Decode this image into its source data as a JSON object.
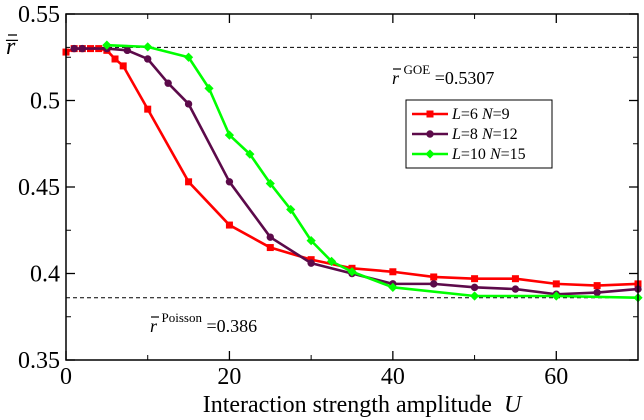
{
  "chart_data": {
    "type": "line",
    "title": "",
    "xlabel": "Interaction strength amplitude",
    "xlabel_var": "U",
    "ylabel": "r̅",
    "xlim": [
      0,
      70
    ],
    "ylim": [
      0.35,
      0.55
    ],
    "x_ticks": [
      0,
      20,
      40,
      60
    ],
    "x_tick_labels": [
      "0",
      "20",
      "40",
      "60"
    ],
    "y_ticks": [
      0.35,
      0.4,
      0.45,
      0.5,
      0.55
    ],
    "y_tick_labels": [
      "0.35",
      "0.4",
      "0.45",
      "0.5",
      "0.55"
    ],
    "grid": false,
    "legend_position": "right",
    "series": [
      {
        "name": "L=6 N=9",
        "label_parts": [
          "L",
          "=6 ",
          "N",
          "=9"
        ],
        "color": "#ff0000",
        "marker": "square",
        "x": [
          0,
          1,
          2,
          3,
          4,
          5,
          6,
          7,
          10,
          15,
          20,
          25,
          30,
          35,
          40,
          45,
          50,
          55,
          60,
          65,
          70
        ],
        "y": [
          0.528,
          0.53,
          0.53,
          0.53,
          0.53,
          0.529,
          0.524,
          0.52,
          0.495,
          0.453,
          0.428,
          0.415,
          0.408,
          0.403,
          0.401,
          0.398,
          0.397,
          0.397,
          0.394,
          0.393,
          0.394
        ]
      },
      {
        "name": "L=8 N=12",
        "label_parts": [
          "L",
          "=8 ",
          "N",
          "=12"
        ],
        "color": "#5c0a4a",
        "marker": "circle",
        "x": [
          1,
          2,
          5,
          7.5,
          10,
          12.5,
          15,
          20,
          25,
          30,
          35,
          40,
          45,
          50,
          55,
          60,
          65,
          70
        ],
        "y": [
          0.53,
          0.53,
          0.53,
          0.529,
          0.524,
          0.51,
          0.498,
          0.453,
          0.421,
          0.406,
          0.4,
          0.394,
          0.394,
          0.392,
          0.391,
          0.388,
          0.389,
          0.391
        ]
      },
      {
        "name": "L=10 N=15",
        "label_parts": [
          "L",
          "=10 ",
          "N",
          "=15"
        ],
        "color": "#00ff00",
        "marker": "diamond",
        "x": [
          5,
          10,
          15,
          17.5,
          20,
          22.5,
          25,
          27.5,
          30,
          32.5,
          35,
          40,
          50,
          60,
          70
        ],
        "y": [
          0.532,
          0.531,
          0.525,
          0.507,
          0.48,
          0.469,
          0.452,
          0.437,
          0.419,
          0.407,
          0.401,
          0.392,
          0.387,
          0.387,
          0.386
        ]
      }
    ],
    "reference_lines": [
      {
        "name": "GOE",
        "y": 0.5307,
        "label_base": "r",
        "label_sup": "GOE",
        "label_value": "=0.5307"
      },
      {
        "name": "Poisson",
        "y": 0.386,
        "label_base": "r",
        "label_sup": "Poisson",
        "label_value": "=0.386"
      }
    ]
  }
}
